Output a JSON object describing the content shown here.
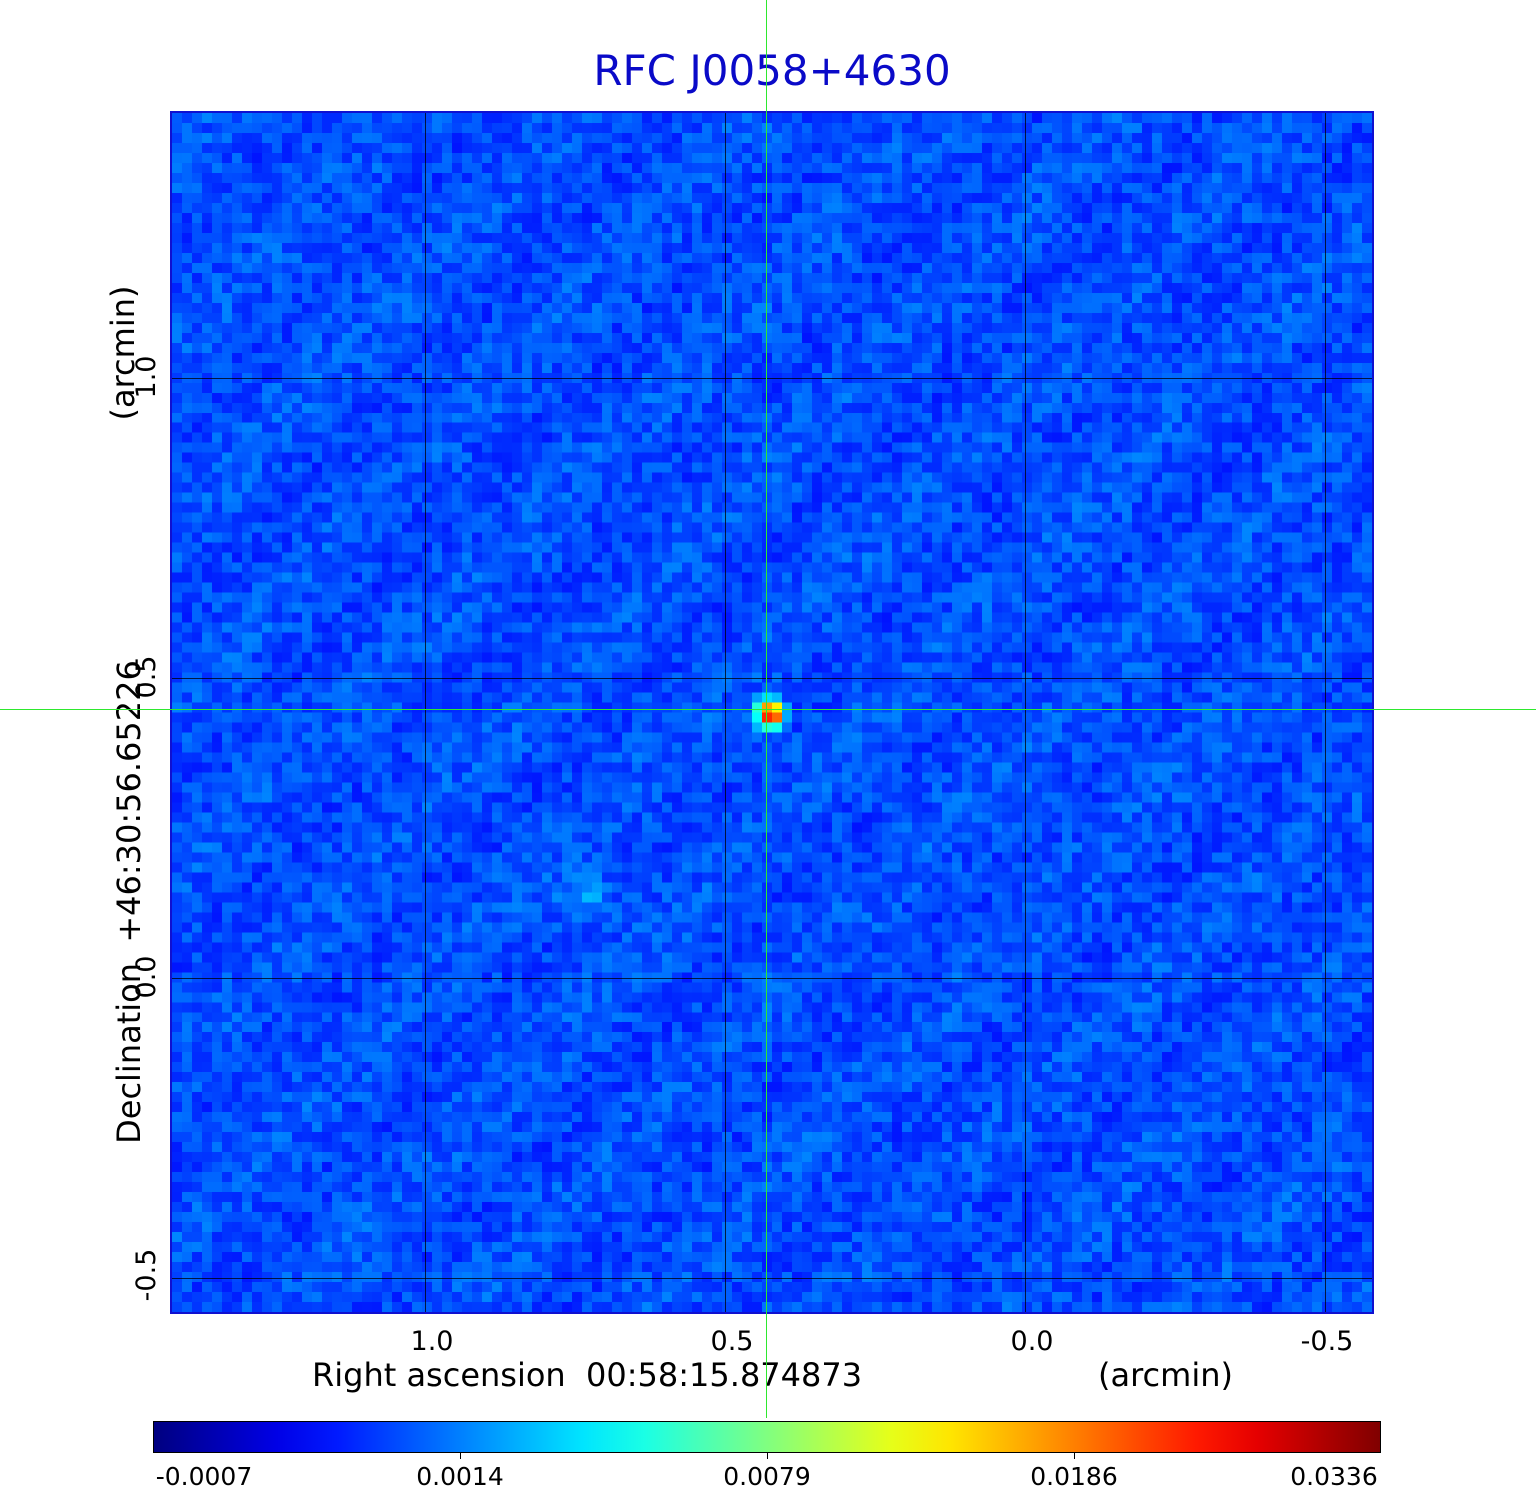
{
  "title": "RFC J0058+4630",
  "x_axis": {
    "label": "Right ascension  00:58:15.874873",
    "unit": "(arcmin)",
    "ticks": [
      "1.0",
      "0.5",
      "0.0",
      "-0.5"
    ]
  },
  "y_axis": {
    "label": "Declination  +46:30:56.65226",
    "unit": "(arcmin)",
    "ticks": [
      "1.0",
      "0.5",
      "0.0",
      "-0.5"
    ]
  },
  "colorbar": {
    "colormap": "jet",
    "ticks": [
      "-0.0007",
      "0.0014",
      "0.0079",
      "0.0186",
      "0.0336"
    ]
  },
  "colors": {
    "title": "#0a0ac8",
    "crosshair": "#2ee82e",
    "frame": "#1010d0",
    "background": "#2a50f0"
  },
  "image": {
    "peak_value": 0.0336,
    "secondary_feature": "faint extended emission south-east of the core"
  }
}
